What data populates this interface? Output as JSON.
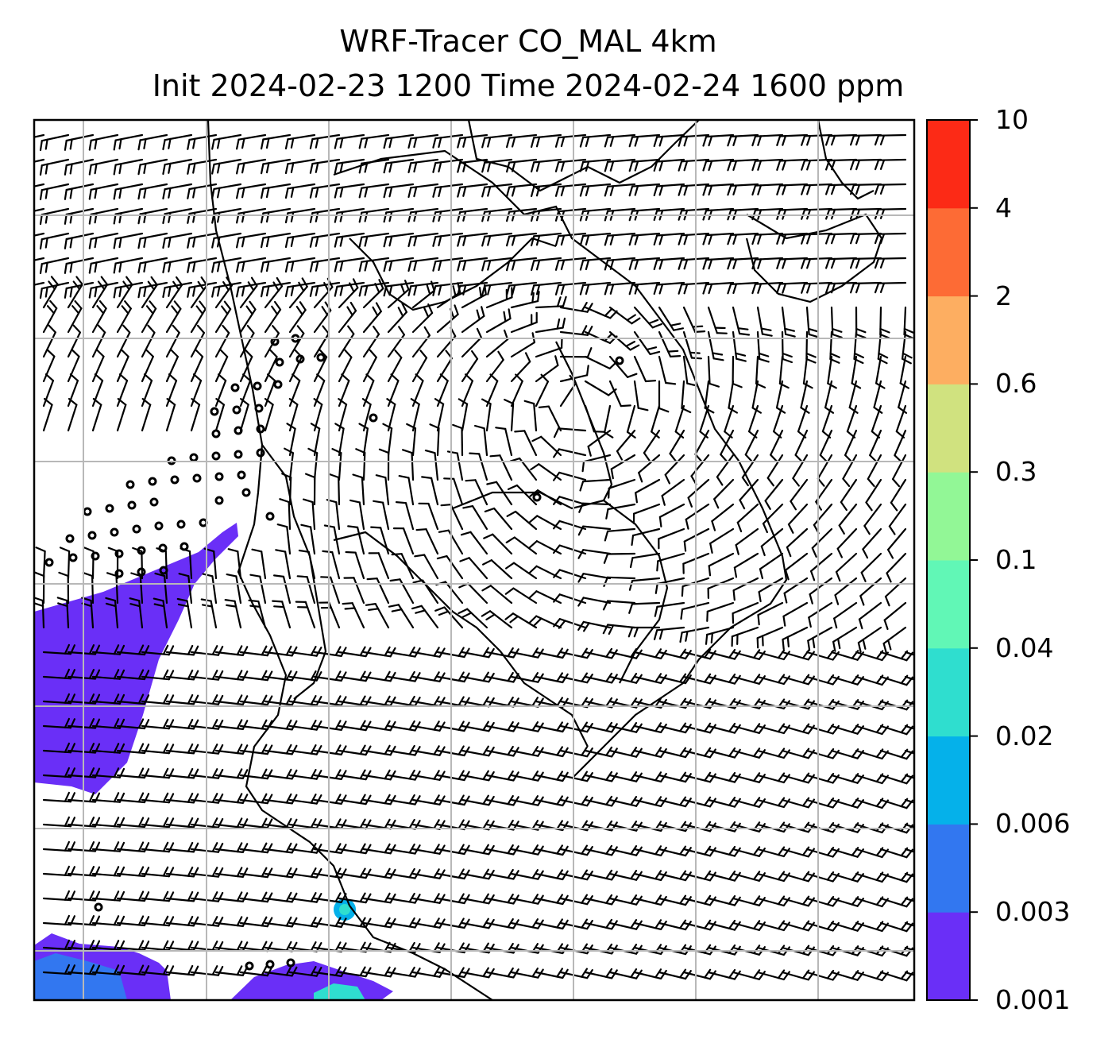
{
  "title": {
    "line1": "WRF-Tracer CO_MAL 4km",
    "line2": "Init 2024-02-23 1200 Time 2024-02-24 1600 ppm"
  },
  "colorbar": {
    "levels": [
      "0.001",
      "0.003",
      "0.006",
      "0.02",
      "0.04",
      "0.1",
      "0.3",
      "0.6",
      "2",
      "4",
      "10"
    ],
    "colors": [
      "#6a2ff7",
      "#3277f0",
      "#05b1ea",
      "#2fdecf",
      "#61f7b6",
      "#92f796",
      "#d0e27f",
      "#fdae61",
      "#fd6b35",
      "#fc2a16"
    ]
  },
  "map": {
    "gridlines": true,
    "barbs": true,
    "tracer_fill_color": "#6a2ff7"
  }
}
